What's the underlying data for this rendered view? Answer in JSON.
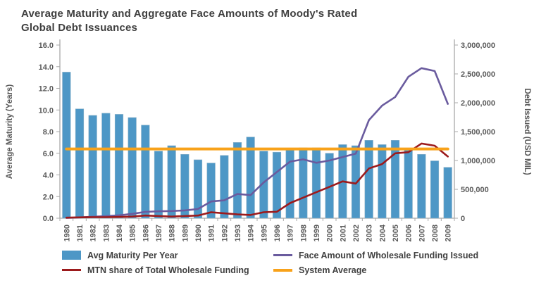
{
  "title": {
    "line1": "Average Maturity and Aggregate Face Amounts of Moody's Rated",
    "line2": "Global Debt Issuances"
  },
  "colors": {
    "axis": "#a9a9a9",
    "tick_text": "#595959",
    "title_text": "#3f3f3f",
    "bar_blue": "#4d97c6",
    "line_purple": "#6a5b9e",
    "line_dark_red": "#9c1a1c",
    "line_orange": "#f8a21a"
  },
  "chart_data": {
    "type": "combo bar+line, dual axis",
    "grid": false,
    "legend_position": "bottom",
    "categories": [
      "1980",
      "1981",
      "1982",
      "1983",
      "1984",
      "1985",
      "1986",
      "1987",
      "1988",
      "1989",
      "1990",
      "1991",
      "1992",
      "1993",
      "1994",
      "1995",
      "1996",
      "1997",
      "1998",
      "1999",
      "2000",
      "2001",
      "2002",
      "2003",
      "2004",
      "2005",
      "2006",
      "2007",
      "2008",
      "2009"
    ],
    "left_axis": {
      "label": "Average Maturity (Years)",
      "min": 0,
      "max": 16,
      "step": 2
    },
    "right_axis": {
      "label": "Debt Issued (USD MIL)",
      "min": 0,
      "max": 3000000,
      "step": 500000
    },
    "series": [
      {
        "name": "Avg Maturity Per Year",
        "type": "bar",
        "axis": "left",
        "color": "#4d97c6",
        "values": [
          13.5,
          10.1,
          9.5,
          9.7,
          9.6,
          9.3,
          8.6,
          6.2,
          6.7,
          5.9,
          5.4,
          5.1,
          5.8,
          7.0,
          7.5,
          6.2,
          6.1,
          6.3,
          6.5,
          6.5,
          6.0,
          6.8,
          6.7,
          7.2,
          6.8,
          7.2,
          6.3,
          5.9,
          5.3,
          4.7
        ]
      },
      {
        "name": "Face Amount of Wholesale Funding Issued",
        "type": "line",
        "axis": "right",
        "color": "#6a5b9e",
        "values": [
          5000,
          15000,
          25000,
          35000,
          50000,
          75000,
          110000,
          120000,
          125000,
          135000,
          160000,
          290000,
          310000,
          420000,
          400000,
          620000,
          800000,
          980000,
          1020000,
          960000,
          1000000,
          1060000,
          1120000,
          1700000,
          1950000,
          2100000,
          2450000,
          2600000,
          2550000,
          1980000
        ]
      },
      {
        "name": "MTN share of Total Wholesale Funding",
        "type": "line",
        "axis": "left",
        "color": "#9c1a1c",
        "values": [
          0.05,
          0.08,
          0.1,
          0.1,
          0.12,
          0.15,
          0.25,
          0.2,
          0.15,
          0.2,
          0.25,
          0.55,
          0.45,
          0.35,
          0.3,
          0.55,
          0.6,
          1.4,
          1.9,
          2.4,
          2.9,
          3.4,
          3.2,
          4.6,
          5.0,
          6.0,
          6.1,
          6.9,
          6.7,
          5.7
        ]
      },
      {
        "name": "System Average",
        "type": "line",
        "axis": "left",
        "color": "#f8a21a",
        "values": [
          6.4,
          6.4,
          6.4,
          6.4,
          6.4,
          6.4,
          6.4,
          6.4,
          6.4,
          6.4,
          6.4,
          6.4,
          6.4,
          6.4,
          6.4,
          6.4,
          6.4,
          6.4,
          6.4,
          6.4,
          6.4,
          6.4,
          6.4,
          6.4,
          6.4,
          6.4,
          6.4,
          6.4,
          6.4,
          6.4
        ]
      }
    ]
  }
}
